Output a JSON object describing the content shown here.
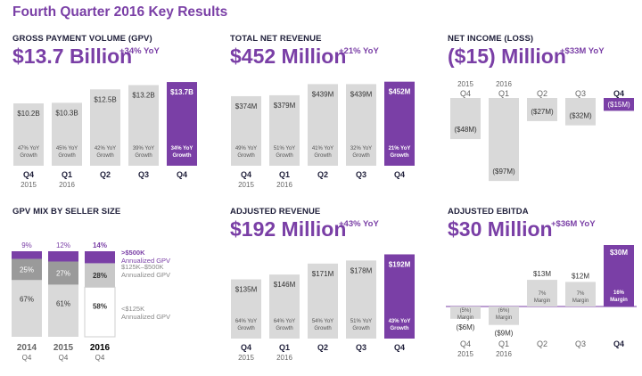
{
  "page": {
    "title": "Fourth Quarter 2016 Key Results"
  },
  "colors": {
    "accent": "#7a3fa6",
    "bar": "#d9d9d9",
    "dark_gray": "#9a9a9a",
    "light_gray": "#c8c8c8",
    "text": "#1f1f3a"
  },
  "chart_data": [
    {
      "id": "gpv",
      "type": "bar",
      "title": "GROSS PAYMENT VOLUME (GPV)",
      "headline": "$13.7 Billion",
      "yoy": "+34% YoY",
      "categories": [
        "Q4|2015",
        "Q1|2016",
        "Q2",
        "Q3",
        "Q4"
      ],
      "values": [
        10.2,
        10.3,
        12.5,
        13.2,
        13.7
      ],
      "value_labels": [
        "$10.2B",
        "$10.3B",
        "$12.5B",
        "$13.2B",
        "$13.7B"
      ],
      "notes": [
        "47% YoY|Growth",
        "45% YoY|Growth",
        "42% YoY|Growth",
        "39% YoY|Growth",
        "34% YoY|Growth"
      ],
      "ylim": [
        0,
        14
      ],
      "highlight_index": 4
    },
    {
      "id": "net-revenue",
      "type": "bar",
      "title": "TOTAL NET REVENUE",
      "headline": "$452 Million",
      "yoy": "+21% YoY",
      "categories": [
        "Q4|2015",
        "Q1|2016",
        "Q2",
        "Q3",
        "Q4"
      ],
      "values": [
        374,
        379,
        439,
        439,
        452
      ],
      "value_labels": [
        "$374M",
        "$379M",
        "$439M",
        "$439M",
        "$452M"
      ],
      "notes": [
        "49% YoY|Growth",
        "51% YoY|Growth",
        "41% YoY|Growth",
        "32% YoY|Growth",
        "21% YoY|Growth"
      ],
      "ylim": [
        0,
        460
      ],
      "highlight_index": 4
    },
    {
      "id": "net-income",
      "type": "bar",
      "title": "NET INCOME (LOSS)",
      "headline": "($15) Million",
      "yoy": "+$33M YoY",
      "categories": [
        "Q4|2015",
        "Q1|2016",
        "Q2",
        "Q3",
        "Q4"
      ],
      "values": [
        -48,
        -97,
        -27,
        -32,
        -15
      ],
      "value_labels": [
        "($48M)",
        "($97M)",
        "($27M)",
        "($32M)",
        "($15M)"
      ],
      "ylim": [
        -100,
        0
      ],
      "highlight_index": 4
    },
    {
      "id": "gpv-mix",
      "type": "bar",
      "stacked": true,
      "title": "GPV MIX BY SELLER SIZE",
      "categories": [
        "2014|Q4",
        "2015|Q4",
        "2016|Q4"
      ],
      "series": [
        {
          "name": "<$125K|Annualized GPV",
          "values": [
            67,
            61,
            58
          ]
        },
        {
          "name": "$125K–$500K|Annualized GPV",
          "values": [
            25,
            27,
            28
          ]
        },
        {
          "name": ">$500K|Annualized GPV",
          "values": [
            9,
            12,
            14
          ]
        }
      ],
      "value_labels": [
        [
          "67%",
          "61%",
          "58%"
        ],
        [
          "25%",
          "27%",
          "28%"
        ],
        [
          "9%",
          "12%",
          "14%"
        ]
      ],
      "highlight_index": 2
    },
    {
      "id": "adjusted-revenue",
      "type": "bar",
      "title": "ADJUSTED REVENUE",
      "headline": "$192 Million",
      "yoy": "+43% YoY",
      "categories": [
        "Q4|2015",
        "Q1|2016",
        "Q2",
        "Q3",
        "Q4"
      ],
      "values": [
        135,
        146,
        171,
        178,
        192
      ],
      "value_labels": [
        "$135M",
        "$146M",
        "$171M",
        "$178M",
        "$192M"
      ],
      "notes": [
        "64% YoY|Growth",
        "64% YoY|Growth",
        "54% YoY|Growth",
        "51% YoY|Growth",
        "43% YoY|Growth"
      ],
      "ylim": [
        0,
        195
      ],
      "highlight_index": 4
    },
    {
      "id": "adjusted-ebitda",
      "type": "bar",
      "title": "ADJUSTED EBITDA",
      "headline": "$30 Million",
      "yoy": "+$36M YoY",
      "categories": [
        "Q4|2015",
        "Q1|2016",
        "Q2",
        "Q3",
        "Q4"
      ],
      "values": [
        -6,
        -9,
        13,
        12,
        30
      ],
      "value_labels": [
        "($6M)",
        "($9M)",
        "$13M",
        "$12M",
        "$30M"
      ],
      "notes": [
        "(5%)|Margin",
        "(6%)|Margin",
        "7%|Margin",
        "7%|Margin",
        "16%|Margin"
      ],
      "ylim": [
        -10,
        30
      ],
      "highlight_index": 4
    }
  ]
}
